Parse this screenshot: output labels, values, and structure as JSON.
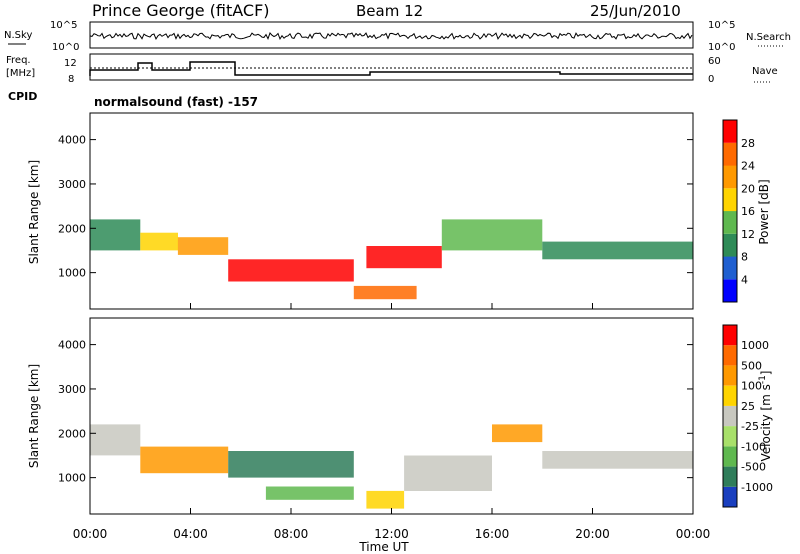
{
  "header": {
    "station": "Prince George (fitACF)",
    "beam": "Beam 12",
    "date": "25/Jun/2010"
  },
  "panels": {
    "nsky": {
      "left_label": "N.Sky",
      "right_label": "N.Search",
      "left_ticks": [
        "10^5",
        "10^0"
      ],
      "right_ticks": [
        "10^5",
        "10^0"
      ]
    },
    "freq": {
      "left_label_1": "Freq.",
      "left_label_2": "[MHz]",
      "right_label": "Nave",
      "left_ticks": [
        "12",
        "8"
      ],
      "right_ticks": [
        "60",
        "0"
      ]
    },
    "cpid": {
      "label": "CPID",
      "text": "normalsound (fast) -157"
    }
  },
  "chart_data": [
    {
      "type": "heatmap",
      "title": "",
      "xlabel": "Time UT",
      "ylabel": "Slant Range [km]",
      "x_ticks": [
        "00:00",
        "04:00",
        "08:00",
        "12:00",
        "16:00",
        "20:00",
        "00:00"
      ],
      "y_ticks": [
        1000,
        2000,
        3000,
        4000
      ],
      "xlim_hours": [
        0,
        24
      ],
      "ylim_km": [
        180,
        4600
      ],
      "colorbar": {
        "label": "Power [dB]",
        "ticks": [
          "4",
          "8",
          "12",
          "16",
          "20",
          "24",
          "28"
        ],
        "colors": [
          "#0000ff",
          "#1f5fd0",
          "#2e8b57",
          "#5fb84f",
          "#ffd400",
          "#ff9900",
          "#ff6a00",
          "#ff0000"
        ]
      },
      "series": [
        {
          "t0": 0.0,
          "t1": 2.0,
          "r0": 1500,
          "r1": 2200,
          "level": 2
        },
        {
          "t0": 2.0,
          "t1": 3.5,
          "r0": 1500,
          "r1": 1900,
          "level": 4
        },
        {
          "t0": 3.5,
          "t1": 5.5,
          "r0": 1400,
          "r1": 1800,
          "level": 5
        },
        {
          "t0": 5.5,
          "t1": 10.5,
          "r0": 800,
          "r1": 1300,
          "level": 7
        },
        {
          "t0": 10.5,
          "t1": 13.0,
          "r0": 400,
          "r1": 700,
          "level": 6
        },
        {
          "t0": 11.0,
          "t1": 14.0,
          "r0": 1100,
          "r1": 1600,
          "level": 7
        },
        {
          "t0": 14.0,
          "t1": 18.0,
          "r0": 1500,
          "r1": 2200,
          "level": 3
        },
        {
          "t0": 18.0,
          "t1": 24.0,
          "r0": 1300,
          "r1": 1700,
          "level": 2
        }
      ]
    },
    {
      "type": "heatmap",
      "title": "",
      "xlabel": "Time UT",
      "ylabel": "Slant Range [km]",
      "x_ticks": [
        "00:00",
        "04:00",
        "08:00",
        "12:00",
        "16:00",
        "20:00",
        "00:00"
      ],
      "y_ticks": [
        1000,
        2000,
        3000,
        4000
      ],
      "xlim_hours": [
        0,
        24
      ],
      "ylim_km": [
        180,
        4600
      ],
      "colorbar": {
        "label": "Velocity [m s^-1]",
        "ticks": [
          "1000",
          "500",
          "100",
          "25",
          "-25",
          "-100",
          "-500",
          "-1000"
        ],
        "colors": [
          "#1a3fbf",
          "#2f7d5a",
          "#5fb84f",
          "#a8e06a",
          "#c8c8c0",
          "#ffd400",
          "#ff9900",
          "#ff6a00",
          "#ff0000"
        ]
      },
      "series": [
        {
          "t0": 0.0,
          "t1": 2.0,
          "r0": 1500,
          "r1": 2200,
          "level": 4
        },
        {
          "t0": 2.0,
          "t1": 5.5,
          "r0": 1100,
          "r1": 1700,
          "level": 6
        },
        {
          "t0": 5.5,
          "t1": 10.5,
          "r0": 1000,
          "r1": 1600,
          "level": 1
        },
        {
          "t0": 7.0,
          "t1": 10.5,
          "r0": 500,
          "r1": 800,
          "level": 2
        },
        {
          "t0": 11.0,
          "t1": 12.5,
          "r0": 300,
          "r1": 700,
          "level": 5
        },
        {
          "t0": 12.5,
          "t1": 16.0,
          "r0": 700,
          "r1": 1500,
          "level": 4
        },
        {
          "t0": 16.0,
          "t1": 18.0,
          "r0": 1800,
          "r1": 2200,
          "level": 6
        },
        {
          "t0": 18.0,
          "t1": 24.0,
          "r0": 1200,
          "r1": 1600,
          "level": 4
        }
      ]
    }
  ]
}
